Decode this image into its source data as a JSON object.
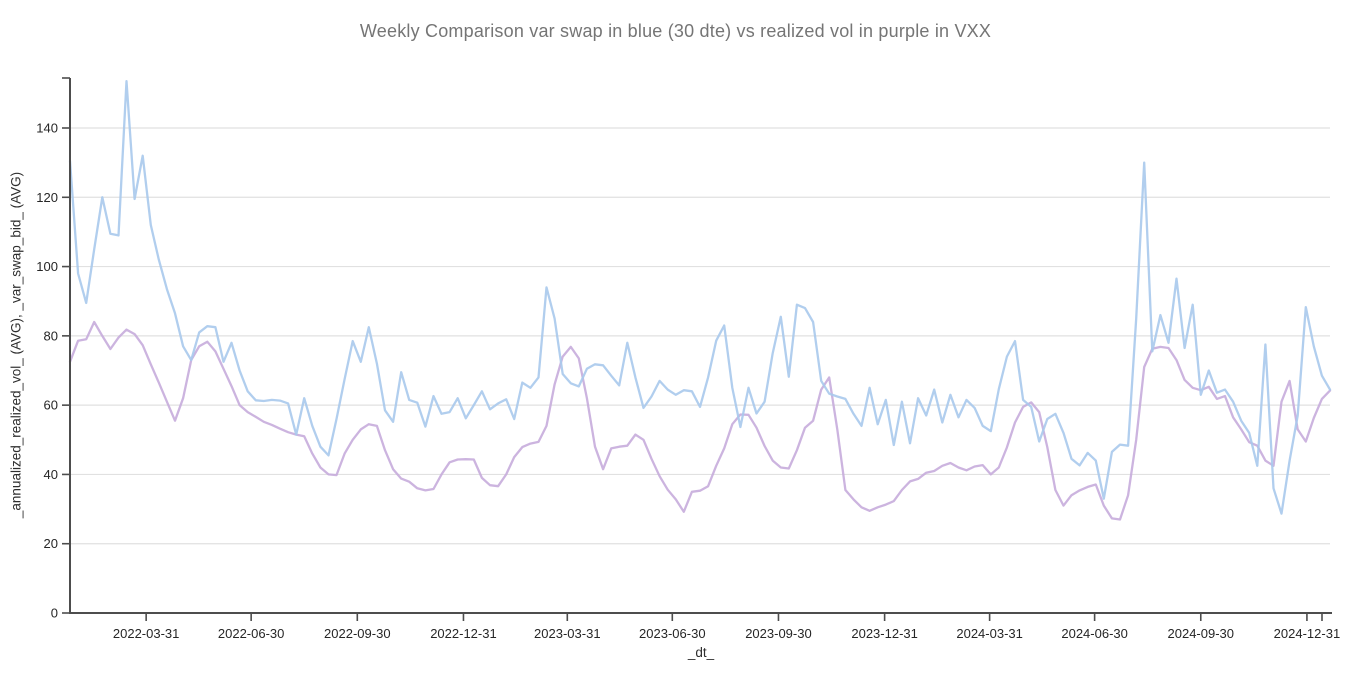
{
  "title": "Weekly Comparison var swap in blue (30 dte) vs realized vol in purple in VXX",
  "chart_data": {
    "type": "line",
    "title": "Weekly Comparison var swap in blue (30 dte) vs realized vol in purple in VXX",
    "xlabel": "_dt_",
    "ylabel": "_annualized_realized_vol_ (AVG), _var_swap_bid_ (AVG)",
    "x_frequency": "weekly",
    "x_start_date": "2022-01-24",
    "x_end_date": "2025-01-20",
    "x_tick_labels": [
      "2022-03-31",
      "2022-06-30",
      "2022-09-30",
      "2022-12-31",
      "2023-03-31",
      "2023-06-30",
      "2023-09-30",
      "2023-12-31",
      "2024-03-31",
      "2024-06-30",
      "2024-09-30",
      "2024-12-31"
    ],
    "y_ticks": [
      0,
      20,
      40,
      60,
      80,
      100,
      120,
      140
    ],
    "ylim": [
      0,
      155
    ],
    "grid": "horizontal-only",
    "legend": "none",
    "series": [
      {
        "name": "_var_swap_bid_ (AVG)",
        "description": "var swap (30 dte), blue",
        "color": "#a8c9ec",
        "values": [
          130.5,
          98,
          89.5,
          105,
          120,
          109.5,
          109,
          153.5,
          119.5,
          132,
          112,
          102,
          93.5,
          86.5,
          77,
          73,
          81,
          82.8,
          82.5,
          72.5,
          78,
          70,
          64,
          61.4,
          61.2,
          61.5,
          61.3,
          60.5,
          51.5,
          62,
          54,
          48,
          45.5,
          56,
          67.5,
          78.5,
          72.5,
          82.5,
          72,
          58.5,
          55.2,
          69.5,
          61.5,
          60.7,
          53.8,
          62.6,
          57.5,
          58,
          62,
          56.2,
          60,
          64,
          58.8,
          60.5,
          61.7,
          56,
          66.5,
          65,
          68,
          94,
          85,
          69,
          66.3,
          65.4,
          70.5,
          71.8,
          71.5,
          68.5,
          65.7,
          78,
          68,
          59.2,
          62.5,
          67,
          64.5,
          63,
          64.3,
          64,
          59.5,
          68,
          78.6,
          83,
          65,
          53.7,
          65,
          57.6,
          61,
          75,
          85.5,
          68.2,
          89,
          88,
          84,
          67,
          63.3,
          62.5,
          61.8,
          57.5,
          54,
          65,
          54.5,
          61.5,
          48.5,
          61,
          49,
          62,
          57,
          64.5,
          55,
          63,
          56.5,
          61.5,
          59.2,
          54,
          52.5,
          64.6,
          74,
          78.5,
          61.5,
          59.5,
          49.5,
          56,
          57.5,
          52,
          44.5,
          42.6,
          46.2,
          44,
          33,
          46.5,
          48.6,
          48.3,
          85,
          130,
          75.5,
          86,
          78,
          96.5,
          76.5,
          89,
          63,
          70,
          63.6,
          64.5,
          61,
          55.5,
          52,
          42.5,
          77.5,
          36,
          28.7,
          44,
          57,
          88.3,
          77,
          68.5,
          64.5
        ]
      },
      {
        "name": "_annualized_realized_vol_ (AVG)",
        "description": "realized vol, purple",
        "color": "#c7acdc",
        "values": [
          72.5,
          78.6,
          79,
          84,
          80,
          76.2,
          79.5,
          81.8,
          80.5,
          77.3,
          71.8,
          66.5,
          61,
          55.5,
          62,
          73,
          77,
          78.3,
          75.5,
          70.5,
          65.5,
          60,
          58,
          56.6,
          55.2,
          54.3,
          53.2,
          52.2,
          51.5,
          51,
          46,
          42,
          40,
          39.8,
          46,
          50,
          53,
          54.5,
          54,
          47,
          41.5,
          38.8,
          37.9,
          36,
          35.4,
          35.8,
          40,
          43.5,
          44.3,
          44.4,
          44.3,
          39,
          36.9,
          36.6,
          40,
          45,
          47.9,
          48.9,
          49.4,
          54,
          66,
          74,
          76.8,
          73.5,
          62,
          48,
          41.5,
          47.5,
          48,
          48.3,
          51.5,
          50,
          44.5,
          39.5,
          35.6,
          32.8,
          29.2,
          35,
          35.3,
          36.6,
          42.5,
          47.5,
          54.5,
          57.3,
          57.2,
          53.5,
          48.2,
          44,
          42,
          41.7,
          47,
          53.5,
          55.5,
          64.5,
          68,
          53,
          35.5,
          32.8,
          30.5,
          29.5,
          30.5,
          31.3,
          32.3,
          35.5,
          38,
          38.7,
          40.5,
          41,
          42.5,
          43.3,
          42,
          41.2,
          42.3,
          42.7,
          40,
          42,
          47.8,
          55,
          59.5,
          60.8,
          58,
          47.9,
          35.5,
          31,
          34,
          35.4,
          36.4,
          37.1,
          31,
          27.3,
          27,
          34,
          50,
          71,
          76.3,
          76.8,
          76.5,
          73,
          67.3,
          65,
          64.3,
          65.3,
          61.8,
          62.6,
          56.5,
          53,
          49.3,
          48.3,
          44,
          42.5,
          61,
          67,
          53,
          49.5,
          56.3,
          61.8,
          64.2
        ]
      }
    ]
  },
  "colors": {
    "background": "#ffffff",
    "gridline": "#e1e1e1",
    "axis": "#4d4d4d",
    "tick_label": "#262626",
    "title": "#757575"
  }
}
